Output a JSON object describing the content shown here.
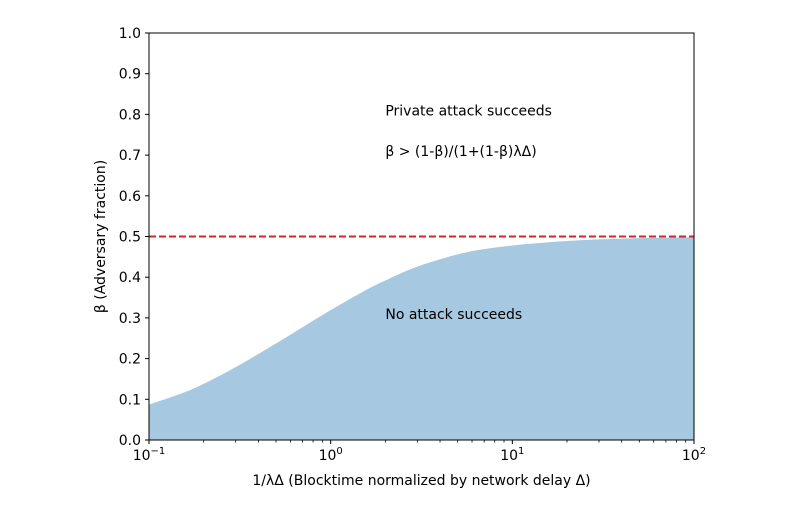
{
  "chart_data": {
    "type": "area",
    "title": "",
    "xlabel": "1/λΔ (Blocktime normalized by network delay Δ)",
    "ylabel": "β (Adversary fraction)",
    "xscale": "log",
    "xlim": [
      0.1,
      100
    ],
    "ylim": [
      0.0,
      1.0
    ],
    "grid": false,
    "legend": "none",
    "x_ticks": [
      {
        "value": 0.1,
        "base": "10",
        "exp": "−1"
      },
      {
        "value": 1,
        "base": "10",
        "exp": "0"
      },
      {
        "value": 10,
        "base": "10",
        "exp": "1"
      },
      {
        "value": 100,
        "base": "10",
        "exp": "2"
      }
    ],
    "y_ticks": [
      {
        "value": 0.0,
        "label": "0.0"
      },
      {
        "value": 0.1,
        "label": "0.1"
      },
      {
        "value": 0.2,
        "label": "0.2"
      },
      {
        "value": 0.3,
        "label": "0.3"
      },
      {
        "value": 0.4,
        "label": "0.4"
      },
      {
        "value": 0.5,
        "label": "0.5"
      },
      {
        "value": 0.6,
        "label": "0.6"
      },
      {
        "value": 0.7,
        "label": "0.7"
      },
      {
        "value": 0.8,
        "label": "0.8"
      },
      {
        "value": 0.9,
        "label": "0.9"
      },
      {
        "value": 1.0,
        "label": "1.0"
      }
    ],
    "area": {
      "x": [
        0.1,
        0.15,
        0.2,
        0.3,
        0.5,
        0.7,
        1,
        1.5,
        2,
        3,
        5,
        7,
        10,
        15,
        20,
        30,
        50,
        70,
        100
      ],
      "y": [
        0.087,
        0.114,
        0.138,
        0.179,
        0.237,
        0.277,
        0.319,
        0.364,
        0.392,
        0.426,
        0.456,
        0.469,
        0.478,
        0.485,
        0.489,
        0.493,
        0.496,
        0.497,
        0.498
      ],
      "color": "#a6c8e0"
    },
    "threshold": {
      "y": 0.5,
      "color": "#d62728",
      "style": "dashed"
    },
    "annotations": [
      {
        "text": "Private attack succeeds",
        "x": 2,
        "y": 0.81
      },
      {
        "text": "β > (1-β)/(1+(1-β)λΔ)",
        "x": 2,
        "y": 0.71
      },
      {
        "text": "No attack succeeds",
        "x": 2,
        "y": 0.31
      }
    ]
  }
}
